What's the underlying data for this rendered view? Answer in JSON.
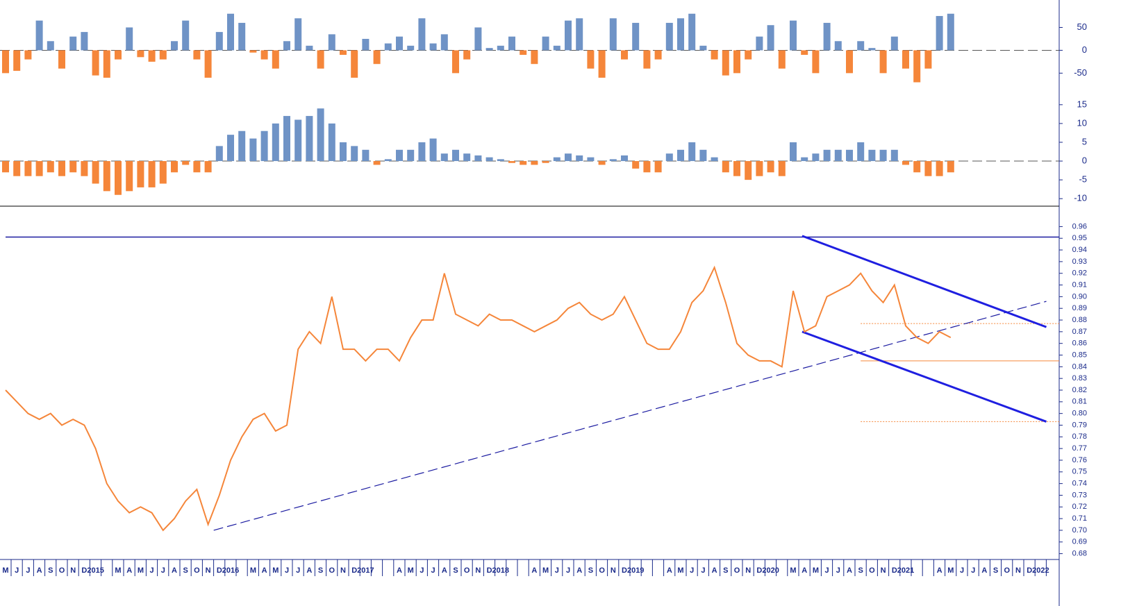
{
  "chart_data": [
    {
      "type": "bar",
      "colors": {
        "positive": "#6f93c6",
        "negative": "#f5863a"
      },
      "values": [
        -50,
        -45,
        -20,
        65,
        20,
        -40,
        30,
        40,
        -55,
        -60,
        -20,
        50,
        -15,
        -25,
        -20,
        20,
        65,
        -20,
        -60,
        40,
        80,
        60,
        -5,
        -20,
        -40,
        20,
        70,
        10,
        -40,
        35,
        -10,
        -60,
        25,
        -30,
        15,
        30,
        10,
        70,
        15,
        35,
        -50,
        -20,
        50,
        5,
        10,
        30,
        -10,
        -30,
        30,
        10,
        65,
        70,
        -40,
        -60,
        70,
        -20,
        60,
        -40,
        -20,
        60,
        70,
        80,
        10,
        -20,
        -55,
        -50,
        -20,
        30,
        55,
        -40,
        65,
        -10,
        -50,
        60,
        20,
        -50,
        20,
        5,
        -50,
        30,
        -40,
        -70,
        -40,
        75,
        80,
        null,
        null,
        null,
        null,
        null,
        null,
        null,
        null
      ],
      "ylim": [
        -95,
        110
      ],
      "yticks": [
        50,
        0,
        -50
      ]
    },
    {
      "type": "bar",
      "colors": {
        "positive": "#6f93c6",
        "negative": "#f5863a"
      },
      "values": [
        -3,
        -4,
        -4,
        -4,
        -3,
        -4,
        -3,
        -4,
        -6,
        -8,
        -9,
        -8,
        -7,
        -7,
        -6,
        -3,
        -1,
        -3,
        -3,
        4,
        7,
        8,
        6,
        8,
        10,
        12,
        11,
        12,
        14,
        10,
        5,
        4,
        3,
        -1,
        0.5,
        3,
        3,
        5,
        6,
        2,
        3,
        2,
        1.5,
        1,
        0.5,
        -0.5,
        -1,
        -1,
        -0.5,
        1,
        2,
        1.5,
        1,
        -1,
        0.5,
        1.5,
        -2,
        -3,
        -3,
        2,
        3,
        5,
        3,
        1,
        -3,
        -4,
        -5,
        -4,
        -3,
        -4,
        5,
        1,
        2,
        3,
        3,
        3,
        5,
        3,
        3,
        3,
        -1,
        -3,
        -4,
        -4,
        -3,
        null,
        null,
        null,
        null,
        null,
        null,
        null,
        null
      ],
      "ylim": [
        -12,
        17
      ],
      "yticks": [
        15,
        10,
        5,
        0,
        -5,
        -10
      ]
    },
    {
      "type": "line",
      "color": "#f5863a",
      "categories": [
        "M",
        "J",
        "J",
        "A",
        "S",
        "O",
        "N",
        "D",
        "2015",
        null,
        "M",
        "A",
        "M",
        "J",
        "J",
        "A",
        "S",
        "O",
        "N",
        "D",
        "2016",
        null,
        "M",
        "A",
        "M",
        "J",
        "J",
        "A",
        "S",
        "O",
        "N",
        "D",
        "2017",
        null,
        null,
        "A",
        "M",
        "J",
        "J",
        "A",
        "S",
        "O",
        "N",
        "D",
        "2018",
        null,
        null,
        "A",
        "M",
        "J",
        "J",
        "A",
        "S",
        "O",
        "N",
        "D",
        "2019",
        null,
        null,
        "A",
        "M",
        "J",
        "J",
        "A",
        "S",
        "O",
        "N",
        "D",
        "2020",
        null,
        "M",
        "A",
        "M",
        "J",
        "J",
        "A",
        "S",
        "O",
        "N",
        "D",
        "2021",
        null,
        null,
        "A",
        "M",
        "J",
        "J",
        "A",
        "S",
        "O",
        "N",
        "D",
        "2022"
      ],
      "values": [
        0.82,
        0.81,
        0.8,
        0.795,
        0.8,
        0.79,
        0.795,
        0.79,
        0.77,
        0.74,
        0.725,
        0.715,
        0.72,
        0.715,
        0.7,
        0.71,
        0.725,
        0.735,
        0.705,
        0.73,
        0.76,
        0.78,
        0.795,
        0.8,
        0.785,
        0.79,
        0.855,
        0.87,
        0.86,
        0.9,
        0.855,
        0.855,
        0.845,
        0.855,
        0.855,
        0.845,
        0.865,
        0.88,
        0.88,
        0.92,
        0.885,
        0.88,
        0.875,
        0.885,
        0.88,
        0.88,
        0.875,
        0.87,
        0.875,
        0.88,
        0.89,
        0.895,
        0.885,
        0.88,
        0.885,
        0.9,
        0.88,
        0.86,
        0.855,
        0.855,
        0.87,
        0.895,
        0.905,
        0.925,
        0.895,
        0.86,
        0.85,
        0.845,
        0.845,
        0.84,
        0.905,
        0.87,
        0.875,
        0.9,
        0.905,
        0.91,
        0.92,
        0.905,
        0.895,
        0.91,
        0.875,
        0.865,
        0.86,
        0.87,
        0.865,
        null,
        null,
        null,
        null,
        null,
        null,
        null,
        null
      ],
      "ylim": [
        0.675,
        0.965
      ],
      "yticks": [
        0.68,
        0.69,
        {
          "value": 0.7,
          "label": "0.70"
        },
        0.71,
        0.72,
        0.73,
        0.74,
        0.75,
        0.76,
        0.77,
        0.78,
        0.79,
        {
          "value": 0.8,
          "label": "0.80"
        },
        0.81,
        0.82,
        0.83,
        0.84,
        0.85,
        0.86,
        0.87,
        0.88,
        0.89,
        {
          "value": 0.9,
          "label": "0.90"
        },
        0.91,
        0.92,
        0.93,
        0.94,
        0.95,
        0.96
      ],
      "hlines": [
        {
          "value": 0.951,
          "from": 0,
          "color": "#1a1aa0",
          "style": "solid"
        },
        {
          "value": 0.877,
          "from": 76,
          "color": "#f5863a",
          "style": "dotted"
        },
        {
          "value": 0.845,
          "from": 76,
          "color": "#f5863a",
          "style": "solid"
        },
        {
          "value": 0.793,
          "from": 76,
          "color": "#f5863a",
          "style": "dotted"
        }
      ],
      "trendlines": [
        {
          "points": [
            [
              18.5,
              0.7
            ],
            [
              92.5,
              0.896
            ]
          ],
          "color": "#1a1aa0",
          "style": "dashed"
        },
        {
          "points": [
            [
              70.8,
              0.952
            ],
            [
              92.5,
              0.874
            ]
          ],
          "color": "#1f1fe0",
          "style": "solid"
        },
        {
          "points": [
            [
              70.8,
              0.87
            ],
            [
              92.5,
              0.793
            ]
          ],
          "color": "#1f1fe0",
          "style": "solid"
        }
      ]
    }
  ]
}
